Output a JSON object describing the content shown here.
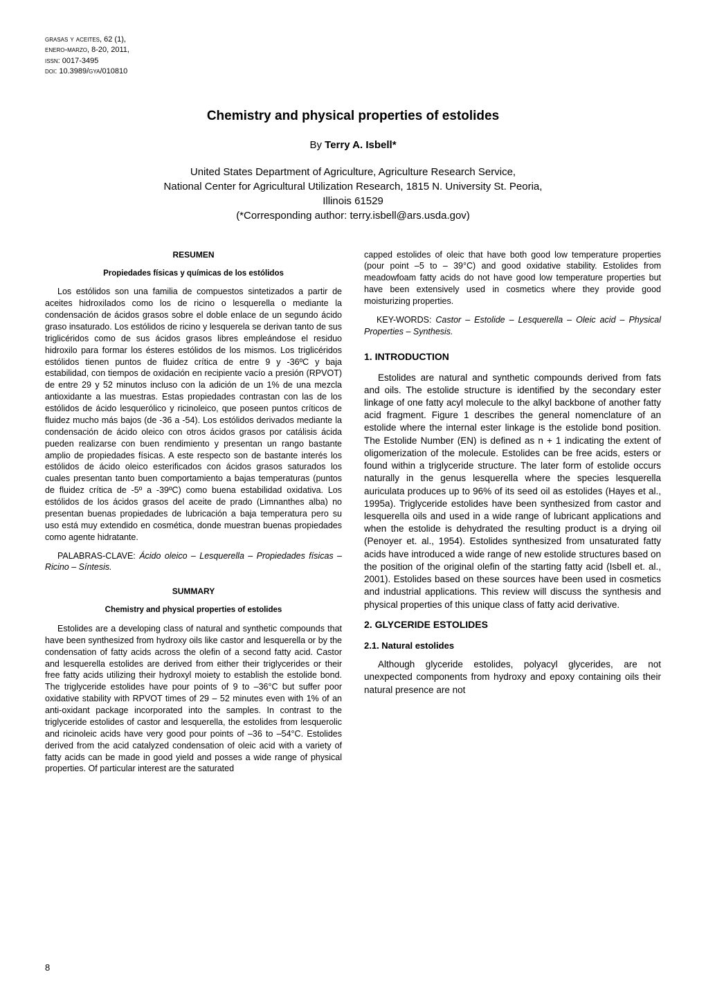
{
  "meta": {
    "line1": "grasas y aceites, 62 (1),",
    "line2": "enero-marzo, 8-20, 2011,",
    "line3": "issn: 0017-3495",
    "line4": "doi: 10.3989/gya/010810"
  },
  "title": "Chemistry and physical properties of estolides",
  "byline": {
    "by": "By ",
    "author": "Terry A. Isbell*"
  },
  "affiliation": {
    "l1": "United States Department of Agriculture, Agriculture Research Service,",
    "l2": "National Center for Agricultural Utilization Research, 1815 N. University St. Peoria,",
    "l3": "Illinois 61529",
    "l4": "(*Corresponding author: terry.isbell@ars.usda.gov)"
  },
  "left": {
    "resumen_label": "RESUMEN",
    "resumen_sub": "Propiedades físicas y químicas de los estólidos",
    "resumen_body": "Los estólidos son una familia de compuestos sintetizados a partir de aceites hidroxilados como los de ricino o lesquerella o mediante la condensación de ácidos grasos sobre el doble enlace de un segundo ácido graso insaturado. Los estólidos de ricino y lesquerela se derivan tanto de sus triglicéridos como de sus ácidos grasos libres empleándose el residuo hidroxilo para formar los ésteres estólidos de los mismos. Los triglicéridos estólidos tienen puntos de fluidez crítica de entre 9 y -36ºC y baja estabilidad, con tiempos de oxidación en recipiente vacío a presión (RPVOT) de entre 29 y 52 minutos incluso con la adición de un 1% de una mezcla antioxidante a las muestras. Estas propiedades contrastan con las de los estólidos de ácido lesquerólico y ricinoleico, que poseen puntos críticos de fluidez mucho más bajos (de -36 a -54). Los estólidos derivados mediante la condensación de ácido oleico con otros ácidos grasos por catálisis ácida pueden realizarse con buen rendimiento y presentan un rango bastante amplio de propiedades físicas. A este respecto son de bastante interés los estólidos de ácido oleico esterificados con ácidos grasos saturados los cuales presentan tanto buen comportamiento a bajas temperaturas (puntos de fluidez crítica de -5º a -39ºC) como buena estabilidad oxidativa. Los estólidos de los ácidos grasos del aceite de prado (Limnanthes alba) no presentan buenas propiedades de lubricación a baja temperatura pero su uso está muy extendido en cosmética, donde muestran buenas propiedades como agente hidratante.",
    "palabras_label": "PALABRAS-CLAVE: ",
    "palabras_body": "Ácido oleico – Lesquerella – Propiedades físicas – Ricino – Síntesis.",
    "summary_label": "SUMMARY",
    "summary_sub": "Chemistry and physical properties of estolides",
    "summary_body": "Estolides are a developing class of natural and synthetic compounds that have been synthesized from hydroxy oils like castor and lesquerella or by the condensation of fatty acids across the olefin of a second fatty acid. Castor and lesquerella estolides are derived from either their triglycerides or their free fatty acids utilizing their hydroxyl moiety to establish the estolide bond. The triglyceride estolides have pour points of 9 to –36°C but suffer poor oxidative stability with RPVOT times of 29 – 52 minutes even with 1% of an anti-oxidant package incorporated into the samples. In contrast to the triglyceride estolides of castor and lesquerella, the estolides from lesquerolic and ricinoleic acids have very good pour points of –36 to –54°C. Estolides derived from the acid catalyzed condensation of oleic acid with a variety of fatty acids can be made in good yield and posses a wide range of physical properties. Of particular interest are the saturated"
  },
  "right": {
    "cont": "capped estolides of oleic that have both good low temperature properties (pour point –5 to – 39°C) and good oxidative stability. Estolides from meadowfoam fatty acids do not have good low temperature properties but have been extensively used in cosmetics where they provide good moisturizing properties.",
    "keywords_label": "KEY-WORDS: ",
    "keywords_body": "Castor – Estolide – Lesquerella – Oleic acid – Physical Properties – Synthesis.",
    "sec1_heading": "1. INTRODUCTION",
    "sec1_body": "Estolides are natural and synthetic compounds derived from fats and oils. The estolide structure is identified by the secondary ester linkage of one fatty acyl molecule to the alkyl backbone of another fatty acid fragment. Figure 1 describes the general nomenclature of an estolide where the internal ester linkage is the estolide bond position. The Estolide Number (EN) is defined as n + 1 indicating the extent of oligomerization of the molecule. Estolides can be free acids, esters or found within a triglyceride structure. The later form of estolide occurs naturally in the genus lesquerella where the species lesquerella auriculata produces up to 96% of its seed oil as estolides (Hayes et al., 1995a). Triglyceride estolides have been synthesized from castor and lesquerella oils and used in a wide range of lubricant applications and when the estolide is dehydrated the resulting product is a drying oil (Penoyer et. al., 1954). Estolides synthesized from unsaturated fatty acids have introduced a wide range of new estolide structures based on the position of the original olefin of the starting fatty acid (Isbell et. al., 2001). Estolides based on these sources have been used in cosmetics and industrial applications. This review will discuss the synthesis and physical properties of this unique class of fatty acid derivative.",
    "sec2_heading": "2. GLYCERIDE ESTOLIDES",
    "sec21_heading": "2.1. Natural estolides",
    "sec21_body": "Although glyceride estolides, polyacyl glycerides, are not unexpected components from hydroxy and epoxy containing oils their natural presence are not"
  },
  "page_number": "8"
}
